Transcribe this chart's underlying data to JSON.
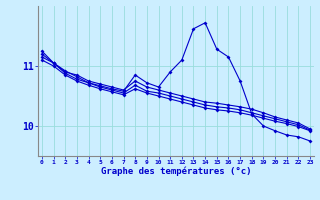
{
  "xlabel": "Graphe des températures (°c)",
  "background_color": "#cceeff",
  "line_color": "#0000cc",
  "grid_color": "#99dddd",
  "x": [
    0,
    1,
    2,
    3,
    4,
    5,
    6,
    7,
    8,
    9,
    10,
    11,
    12,
    13,
    14,
    15,
    16,
    17,
    18,
    19,
    20,
    21,
    22,
    23
  ],
  "series": [
    [
      11.25,
      11.05,
      10.9,
      10.85,
      10.75,
      10.7,
      10.65,
      10.6,
      10.75,
      10.65,
      10.6,
      10.55,
      10.5,
      10.45,
      10.4,
      10.38,
      10.35,
      10.32,
      10.28,
      10.22,
      10.15,
      10.1,
      10.05,
      9.95
    ],
    [
      11.15,
      11.05,
      10.88,
      10.78,
      10.72,
      10.65,
      10.6,
      10.55,
      10.68,
      10.58,
      10.55,
      10.5,
      10.45,
      10.4,
      10.35,
      10.32,
      10.3,
      10.27,
      10.22,
      10.17,
      10.12,
      10.07,
      10.02,
      9.93
    ],
    [
      11.1,
      11.0,
      10.85,
      10.75,
      10.68,
      10.62,
      10.57,
      10.52,
      10.62,
      10.55,
      10.5,
      10.45,
      10.4,
      10.35,
      10.3,
      10.27,
      10.25,
      10.22,
      10.18,
      10.13,
      10.08,
      10.04,
      9.99,
      9.92
    ],
    [
      11.2,
      11.05,
      10.92,
      10.82,
      10.72,
      10.67,
      10.62,
      10.58,
      10.85,
      10.72,
      10.65,
      10.9,
      11.1,
      11.62,
      11.72,
      11.28,
      11.15,
      10.75,
      10.2,
      10.0,
      9.92,
      9.85,
      9.82,
      9.75
    ]
  ],
  "yticks": [
    10,
    11
  ],
  "ylim": [
    9.5,
    12.0
  ],
  "xlim": [
    -0.3,
    23.3
  ]
}
